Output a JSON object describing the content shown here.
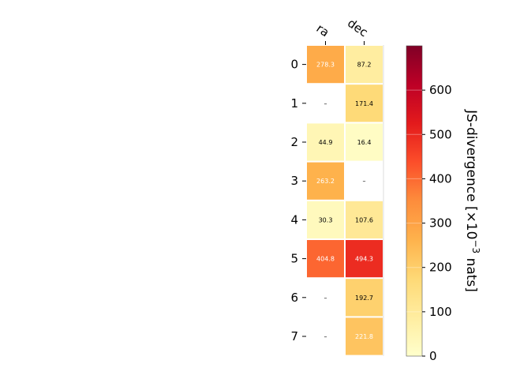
{
  "chart_data": {
    "type": "heatmap",
    "columns": [
      "ra",
      "dec"
    ],
    "rows": [
      "0",
      "1",
      "2",
      "3",
      "4",
      "5",
      "6",
      "7"
    ],
    "values": [
      [
        278.3,
        87.2
      ],
      [
        null,
        171.4
      ],
      [
        44.9,
        16.4
      ],
      [
        263.2,
        null
      ],
      [
        30.3,
        107.6
      ],
      [
        404.8,
        494.3
      ],
      [
        null,
        192.7
      ],
      [
        null,
        221.8
      ]
    ],
    "cell_labels": [
      [
        "278.3",
        "87.2"
      ],
      [
        "–",
        "171.4"
      ],
      [
        "44.9",
        "16.4"
      ],
      [
        "263.2",
        "–"
      ],
      [
        "30.3",
        "107.6"
      ],
      [
        "404.8",
        "494.3"
      ],
      [
        "–",
        "192.7"
      ],
      [
        "–",
        "221.8"
      ]
    ],
    "colorbar": {
      "label_main": "JS-divergence [×10",
      "label_exp": "−3",
      "label_unit": " nats]",
      "range": [
        0,
        700
      ],
      "ticks": [
        0,
        100,
        200,
        300,
        400,
        500,
        600
      ],
      "tick_labels": [
        "0",
        "100",
        "200",
        "300",
        "400",
        "500",
        "600"
      ],
      "colormap": "YlOrRd"
    }
  }
}
